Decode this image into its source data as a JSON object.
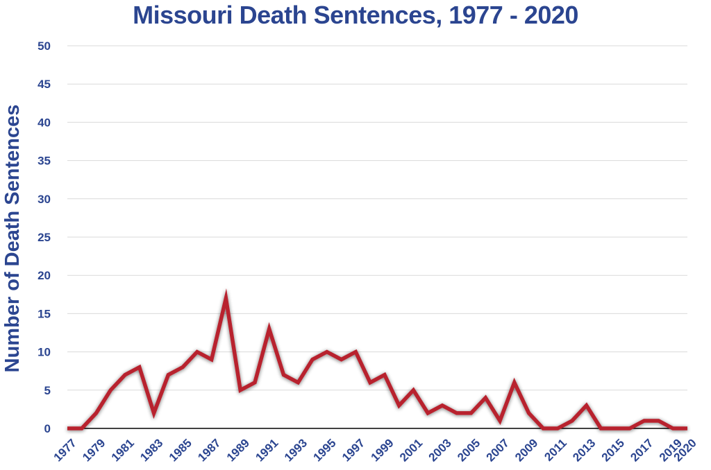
{
  "chart_data": {
    "type": "line",
    "title": "Missouri Death Sentences, 1977 - 2020",
    "xlabel": "",
    "ylabel": "Number of Death Sentences",
    "ylim": [
      0,
      50
    ],
    "yticks": [
      "0",
      "5",
      "10",
      "15",
      "20",
      "25",
      "30",
      "35",
      "40",
      "45",
      "50"
    ],
    "x": [
      1977,
      1978,
      1979,
      1980,
      1981,
      1982,
      1983,
      1984,
      1985,
      1986,
      1987,
      1988,
      1989,
      1990,
      1991,
      1992,
      1993,
      1994,
      1995,
      1996,
      1997,
      1998,
      1999,
      2000,
      2001,
      2002,
      2003,
      2004,
      2005,
      2006,
      2007,
      2008,
      2009,
      2010,
      2011,
      2012,
      2013,
      2014,
      2015,
      2016,
      2017,
      2018,
      2019,
      2020
    ],
    "xtick_labels": [
      "1977",
      "1979",
      "1981",
      "1983",
      "1985",
      "1987",
      "1989",
      "1991",
      "1993",
      "1995",
      "1997",
      "1999",
      "2001",
      "2003",
      "2005",
      "2007",
      "2009",
      "2011",
      "2013",
      "2015",
      "2017",
      "2019",
      "2020"
    ],
    "series": [
      {
        "values": [
          0,
          0,
          2,
          5,
          7,
          8,
          2,
          7,
          8,
          10,
          9,
          17,
          5,
          6,
          13,
          7,
          6,
          9,
          10,
          9,
          10,
          6,
          7,
          3,
          5,
          2,
          3,
          2,
          2,
          4,
          1,
          6,
          2,
          0,
          0,
          1,
          3,
          0,
          0,
          0,
          1,
          1,
          0,
          0
        ]
      }
    ],
    "grid": true,
    "legend": "none",
    "colors": {
      "line": "#b8232f",
      "text": "#2b4590",
      "grid": "#d9d9d9",
      "axis": "#000000"
    }
  }
}
